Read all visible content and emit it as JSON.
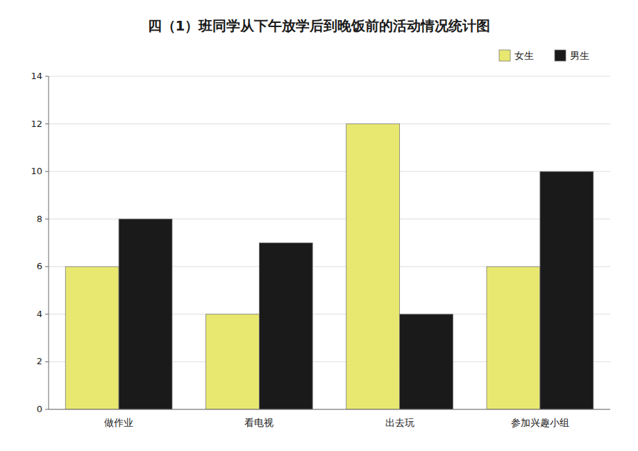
{
  "chart_data": {
    "type": "bar",
    "title": "四（1）班同学从下午放学后到晚饭前的活动情况统计图",
    "categories": [
      "做作业",
      "看电视",
      "出去玩",
      "参加兴趣小组"
    ],
    "series": [
      {
        "name": "女生",
        "color": "#e8e870",
        "values": [
          6,
          4,
          12,
          6
        ]
      },
      {
        "name": "男生",
        "color": "#1a1a1a",
        "values": [
          8,
          7,
          4,
          10
        ]
      }
    ],
    "ylim": [
      0,
      14
    ],
    "yticks": [
      0,
      2,
      4,
      6,
      8,
      10,
      12,
      14
    ],
    "grid": true,
    "legend": "upper right"
  }
}
